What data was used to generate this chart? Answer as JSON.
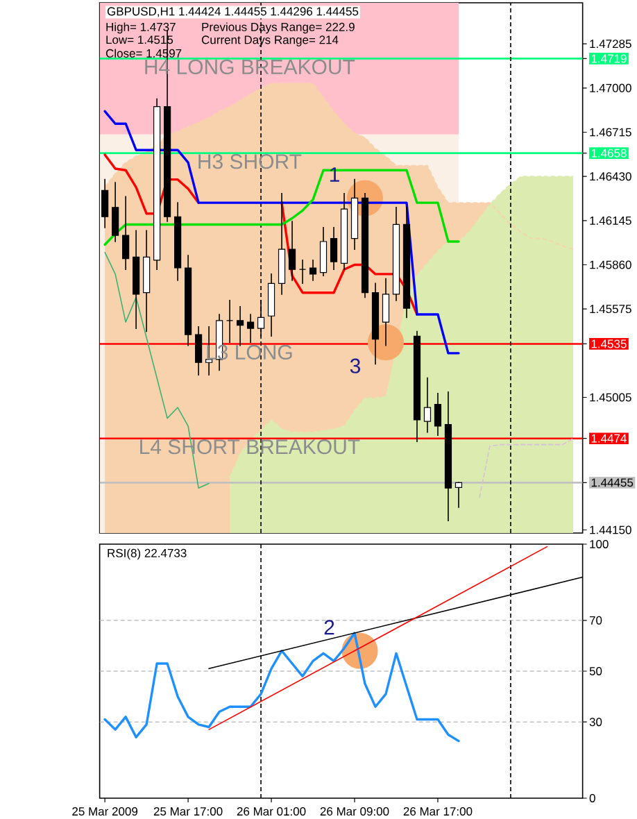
{
  "chart_data": [
    {
      "type": "candlestick",
      "title": "GBPUSD,H1 1.44424 1.44455 1.44296 1.44455",
      "annotations": [
        "High= 1.4737",
        "Previous Days Range= 222.9",
        "Low= 1.4515",
        "Current Days Range= 214",
        "Close= 1.4597",
        {
          "text": "1",
          "x": "2009-03-26T10:00",
          "y": 1.4629
        },
        {
          "text": "3",
          "x": "2009-03-26T12:00",
          "y": 1.4536
        }
      ],
      "x": [
        "2009-03-25T09:00",
        "2009-03-25T10:00",
        "2009-03-25T11:00",
        "2009-03-25T12:00",
        "2009-03-25T13:00",
        "2009-03-25T14:00",
        "2009-03-25T15:00",
        "2009-03-25T16:00",
        "2009-03-25T17:00",
        "2009-03-25T18:00",
        "2009-03-25T19:00",
        "2009-03-25T20:00",
        "2009-03-25T21:00",
        "2009-03-25T22:00",
        "2009-03-25T23:00",
        "2009-03-26T00:00",
        "2009-03-26T01:00",
        "2009-03-26T02:00",
        "2009-03-26T03:00",
        "2009-03-26T04:00",
        "2009-03-26T05:00",
        "2009-03-26T06:00",
        "2009-03-26T07:00",
        "2009-03-26T08:00",
        "2009-03-26T09:00",
        "2009-03-26T10:00",
        "2009-03-26T11:00",
        "2009-03-26T12:00",
        "2009-03-26T13:00",
        "2009-03-26T14:00",
        "2009-03-26T15:00",
        "2009-03-26T16:00",
        "2009-03-26T17:00",
        "2009-03-26T18:00",
        "2009-03-26T19:00"
      ],
      "ohlc": [
        [
          1.4634,
          1.4641,
          1.461,
          1.4617
        ],
        [
          1.4623,
          1.4639,
          1.4601,
          1.4605
        ],
        [
          1.4605,
          1.463,
          1.4583,
          1.459
        ],
        [
          1.4591,
          1.4608,
          1.4545,
          1.4567
        ],
        [
          1.4568,
          1.4608,
          1.4543,
          1.4591
        ],
        [
          1.4589,
          1.4693,
          1.4583,
          1.4688
        ],
        [
          1.4688,
          1.4737,
          1.4614,
          1.4617
        ],
        [
          1.4617,
          1.4626,
          1.4576,
          1.4584
        ],
        [
          1.4584,
          1.4592,
          1.4534,
          1.4541
        ],
        [
          1.4541,
          1.4546,
          1.4515,
          1.4523
        ],
        [
          1.4523,
          1.4546,
          1.4515,
          1.4525
        ],
        [
          1.4525,
          1.4554,
          1.4518,
          1.455
        ],
        [
          1.455,
          1.4563,
          1.4536,
          1.455
        ],
        [
          1.455,
          1.4559,
          1.4534,
          1.4547
        ],
        [
          1.4549,
          1.4554,
          1.4536,
          1.4545
        ],
        [
          1.4545,
          1.4563,
          1.454,
          1.4552
        ],
        [
          1.4553,
          1.458,
          1.454,
          1.4574
        ],
        [
          1.4574,
          1.4632,
          1.4567,
          1.4596
        ],
        [
          1.4596,
          1.4614,
          1.4576,
          1.4583
        ],
        [
          1.4583,
          1.4589,
          1.4574,
          1.4583
        ],
        [
          1.4584,
          1.4589,
          1.4576,
          1.458
        ],
        [
          1.4581,
          1.461,
          1.4579,
          1.4601
        ],
        [
          1.4603,
          1.461,
          1.4583,
          1.4588
        ],
        [
          1.4587,
          1.4632,
          1.4583,
          1.4622
        ],
        [
          1.4603,
          1.4641,
          1.4596,
          1.4629
        ],
        [
          1.4629,
          1.4632,
          1.4565,
          1.4568
        ],
        [
          1.4568,
          1.4574,
          1.4522,
          1.4538
        ],
        [
          1.4549,
          1.4577,
          1.4534,
          1.4567
        ],
        [
          1.4567,
          1.4623,
          1.4563,
          1.4612
        ],
        [
          1.4612,
          1.4623,
          1.4552,
          1.4558
        ],
        [
          1.454,
          1.4543,
          1.4472,
          1.4486
        ],
        [
          1.4485,
          1.4513,
          1.4478,
          1.4494
        ],
        [
          1.4496,
          1.4503,
          1.4476,
          1.4482
        ],
        [
          1.4483,
          1.4504,
          1.4421,
          1.4442
        ],
        [
          1.44424,
          1.44455,
          1.44296,
          1.44455
        ]
      ],
      "colors": [
        "#000000",
        "#000000",
        "#000000",
        "#000000",
        "#ffffff",
        "#ffffff",
        "#000000",
        "#000000",
        "#000000",
        "#000000",
        "#ffffff",
        "#ffffff",
        "#000000",
        "#000000",
        "#000000",
        "#ffffff",
        "#ffffff",
        "#ffffff",
        "#000000",
        "#000000",
        "#000000",
        "#ffffff",
        "#000000",
        "#ffffff",
        "#ffffff",
        "#000000",
        "#000000",
        "#ffffff",
        "#ffffff",
        "#000000",
        "#000000",
        "#ffffff",
        "#000000",
        "#000000",
        "#ffffff"
      ],
      "series": [
        {
          "type": "area",
          "color": "#f7d2ad",
          "line_style": "dashed",
          "x": [
            "2009-03-25T09:00",
            "2009-03-25T10:00",
            "2009-03-25T11:00",
            "2009-03-25T12:00",
            "2009-03-25T13:00",
            "2009-03-25T14:00",
            "2009-03-25T15:00",
            "2009-03-25T16:00",
            "2009-03-25T17:00",
            "2009-03-25T18:00",
            "2009-03-25T19:00",
            "2009-03-25T20:00",
            "2009-03-25T21:00",
            "2009-03-25T22:00",
            "2009-03-25T23:00",
            "2009-03-26T00:00",
            "2009-03-26T01:00",
            "2009-03-26T02:00",
            "2009-03-26T03:00",
            "2009-03-26T04:00",
            "2009-03-26T05:00",
            "2009-03-26T06:00",
            "2009-03-26T07:00",
            "2009-03-26T08:00",
            "2009-03-26T09:00",
            "2009-03-26T10:00",
            "2009-03-26T11:00",
            "2009-03-26T12:00",
            "2009-03-26T13:00",
            "2009-03-26T14:00",
            "2009-03-26T15:00",
            "2009-03-26T16:00",
            "2009-03-26T17:00",
            "2009-03-26T18:00",
            "2009-03-26T19:00",
            "2009-03-26T20:00",
            "2009-03-26T21:00",
            "2009-03-26T22:00",
            "2009-03-26T23:00",
            "2009-03-27T00:00",
            "2009-03-27T01:00",
            "2009-03-27T02:00",
            "2009-03-27T03:00",
            "2009-03-27T04:00",
            "2009-03-27T05:00",
            "2009-03-27T06:00"
          ],
          "values": [
            1.4636,
            1.4645,
            1.4652,
            1.4656,
            1.4659,
            1.4663,
            1.467,
            1.4672,
            1.4675,
            1.4678,
            1.4681,
            1.4685,
            1.4688,
            1.4692,
            1.4696,
            1.47,
            1.4703,
            1.4703,
            1.4703,
            1.4703,
            1.4703,
            1.4694,
            1.4685,
            1.4677,
            1.4671,
            1.4668,
            1.4661,
            1.4656,
            1.465,
            1.465,
            1.465,
            1.465,
            1.4636,
            1.4626,
            1.4626,
            1.4626,
            1.4626,
            1.4626,
            1.4619,
            1.4612,
            1.4607,
            1.4603,
            1.4603,
            1.4601,
            1.4598,
            1.4596
          ]
        },
        {
          "type": "area",
          "color": "#dcebb0",
          "line_style": "dashed",
          "x": [
            "2009-03-25T21:00",
            "2009-03-25T22:00",
            "2009-03-25T23:00",
            "2009-03-26T00:00",
            "2009-03-26T01:00",
            "2009-03-26T02:00",
            "2009-03-26T03:00",
            "2009-03-26T04:00",
            "2009-03-26T05:00",
            "2009-03-26T06:00",
            "2009-03-26T07:00",
            "2009-03-26T08:00",
            "2009-03-26T09:00",
            "2009-03-26T10:00",
            "2009-03-26T11:00",
            "2009-03-26T12:00",
            "2009-03-26T13:00",
            "2009-03-26T14:00",
            "2009-03-26T15:00",
            "2009-03-26T16:00",
            "2009-03-26T17:00",
            "2009-03-26T18:00",
            "2009-03-26T19:00",
            "2009-03-26T20:00",
            "2009-03-26T21:00",
            "2009-03-26T22:00",
            "2009-03-26T23:00",
            "2009-03-27T00:00",
            "2009-03-27T01:00",
            "2009-03-27T02:00",
            "2009-03-27T03:00",
            "2009-03-27T04:00",
            "2009-03-27T05:00",
            "2009-03-27T06:00"
          ],
          "values": [
            1.4449,
            1.4464,
            1.4473,
            1.4479,
            1.4486,
            1.448,
            1.4478,
            1.4478,
            1.4478,
            1.4479,
            1.448,
            1.4482,
            1.4492,
            1.45,
            1.45,
            1.4501,
            null,
            1.4565,
            1.4579,
            1.4587,
            1.4595,
            1.4601,
            1.4601,
            1.4607,
            1.4616,
            1.4625,
            1.4632,
            1.4638,
            1.4643,
            1.4643,
            1.4643,
            1.4643,
            1.4643,
            1.4643
          ]
        },
        {
          "type": "line",
          "color": "#d8bfd8",
          "line_style": "dashed",
          "x": [
            "2009-03-26T21:00",
            "2009-03-26T22:00",
            "2009-03-26T23:00",
            "2009-03-27T00:00",
            "2009-03-27T01:00",
            "2009-03-27T02:00",
            "2009-03-27T03:00",
            "2009-03-27T04:00",
            "2009-03-27T05:00",
            "2009-03-27T06:00"
          ],
          "values": [
            1.4436,
            1.4469,
            1.447,
            1.447,
            1.447,
            1.447,
            1.447,
            1.447,
            1.447,
            1.4474
          ]
        },
        {
          "type": "line",
          "color": "#3cb371",
          "x": [
            "2009-03-25T09:00",
            "2009-03-25T10:00",
            "2009-03-25T11:00",
            "2009-03-25T12:00",
            "2009-03-25T15:00",
            "2009-03-25T16:00",
            "2009-03-25T17:00",
            "2009-03-25T18:00",
            "2009-03-25T19:00"
          ],
          "values": [
            1.4594,
            1.458,
            1.4549,
            1.4565,
            1.4487,
            1.4494,
            1.4482,
            1.4442,
            1.4445
          ]
        },
        {
          "type": "line",
          "color": "#ff0000",
          "values": [
            1.4657,
            1.4648,
            1.4647,
            1.4636,
            1.4619,
            1.4619,
            1.4641,
            1.4641,
            1.4635,
            1.4626,
            null,
            null,
            null,
            null,
            null,
            null,
            null,
            1.4626,
            1.4579,
            1.4568,
            1.4568,
            1.4568,
            1.4568,
            1.4583,
            1.4586,
            1.4586,
            1.458,
            1.458,
            1.458,
            1.457,
            1.4554,
            null,
            null,
            null,
            null
          ]
        },
        {
          "type": "line",
          "color": "#0000ff",
          "values": [
            1.4685,
            1.4677,
            1.4677,
            1.466,
            1.466,
            1.466,
            1.466,
            1.466,
            1.4652,
            1.4626,
            1.4626,
            1.4626,
            1.4626,
            1.4626,
            1.4626,
            1.4626,
            1.4626,
            1.4626,
            1.4626,
            1.4626,
            1.4626,
            1.4626,
            1.4626,
            1.4626,
            1.4626,
            1.4626,
            1.4626,
            1.4626,
            1.4626,
            1.4626,
            1.4554,
            1.4554,
            1.4554,
            1.4529,
            1.4529
          ]
        },
        {
          "type": "line",
          "color": "#00e000",
          "values": [
            1.4599,
            1.4606,
            1.4612,
            1.4612,
            1.4612,
            1.4612,
            1.4612,
            1.4612,
            1.4612,
            1.4612,
            1.4612,
            1.4612,
            1.4612,
            1.4612,
            1.4612,
            1.4612,
            1.4612,
            1.4612,
            1.4616,
            1.4621,
            1.4628,
            1.4647,
            1.4647,
            1.4647,
            1.4647,
            1.4647,
            1.4647,
            1.4647,
            1.4647,
            1.4647,
            1.4626,
            1.4626,
            1.4626,
            1.4601,
            1.4601
          ]
        }
      ],
      "xlim": [
        "2009-03-25T08:30",
        "2009-03-27T06:55"
      ],
      "ylim": [
        1.4413,
        1.4755
      ],
      "yticks": [
        {
          "value": 1.47285,
          "label": "1.47285"
        },
        {
          "value": 1.4719,
          "label": "1.4719"
        },
        {
          "value": 1.47,
          "label": "1.47000"
        },
        {
          "value": 1.46715,
          "label": "1.46715"
        },
        {
          "value": 1.4658,
          "label": "1.4658"
        },
        {
          "value": 1.4643,
          "label": "1.46430"
        },
        {
          "value": 1.46145,
          "label": "1.46145"
        },
        {
          "value": 1.4586,
          "label": "1.45860"
        },
        {
          "value": 1.45575,
          "label": "1.45575"
        },
        {
          "value": 1.4535,
          "label": "1.4535"
        },
        {
          "value": 1.45005,
          "label": "1.45005"
        },
        {
          "value": 1.4474,
          "label": "1.4474"
        },
        {
          "value": 1.44455,
          "label": "1.44455"
        },
        {
          "value": 1.4415,
          "label": "1.44150"
        }
      ],
      "tick_labels": "y",
      "ref_lines": [
        {
          "axis": "y",
          "value": 1.4719,
          "label": "H4 LONG BREAKOUT",
          "color": "#00ff7f"
        },
        {
          "axis": "y",
          "value": 1.4658,
          "label": "H3 SHORT",
          "color": "#00ff7f"
        },
        {
          "axis": "y",
          "value": 1.4535,
          "label": "L3 LONG",
          "color": "#ff0000"
        },
        {
          "axis": "y",
          "value": 1.4474,
          "label": "L4 SHORT BREAKOUT",
          "color": "#ff0000"
        },
        {
          "axis": "y",
          "value": 1.44455,
          "color": "#c0c0c0"
        },
        {
          "axis": "x",
          "value": "2009-03-26T00:00",
          "color": "#000000",
          "line_style": "dashed"
        },
        {
          "axis": "x",
          "value": "2009-03-27T00:00",
          "color": "#000000",
          "line_style": "dashed"
        }
      ],
      "bands": [
        {
          "axis": "y",
          "from": 1.467,
          "to": 1.4755,
          "color": "#ffc0cb"
        },
        {
          "axis": "y",
          "from": 1.4413,
          "to": 1.467,
          "color": "#faf0e6"
        }
      ]
    },
    {
      "type": "line",
      "title": "RSI(8) 22.4733",
      "x": [
        "2009-03-25T09:00",
        "2009-03-25T10:00",
        "2009-03-25T11:00",
        "2009-03-25T12:00",
        "2009-03-25T13:00",
        "2009-03-25T14:00",
        "2009-03-25T15:00",
        "2009-03-25T16:00",
        "2009-03-25T17:00",
        "2009-03-25T18:00",
        "2009-03-25T19:00",
        "2009-03-25T20:00",
        "2009-03-25T21:00",
        "2009-03-25T22:00",
        "2009-03-25T23:00",
        "2009-03-26T00:00",
        "2009-03-26T01:00",
        "2009-03-26T02:00",
        "2009-03-26T03:00",
        "2009-03-26T04:00",
        "2009-03-26T05:00",
        "2009-03-26T06:00",
        "2009-03-26T07:00",
        "2009-03-26T08:00",
        "2009-03-26T09:00",
        "2009-03-26T10:00",
        "2009-03-26T11:00",
        "2009-03-26T12:00",
        "2009-03-26T13:00",
        "2009-03-26T14:00",
        "2009-03-26T15:00",
        "2009-03-26T16:00",
        "2009-03-26T17:00",
        "2009-03-26T18:00",
        "2009-03-26T19:00"
      ],
      "series": [
        {
          "color": "#1e90ff",
          "values": [
            31,
            27,
            32,
            24,
            29,
            53,
            53,
            40,
            32,
            29,
            28,
            34,
            36,
            36,
            36,
            41,
            51,
            58,
            53,
            48,
            54,
            57,
            54,
            59,
            65,
            45,
            36,
            41,
            57,
            44,
            31,
            31,
            31,
            25,
            22.5
          ]
        },
        {
          "color": "#000000",
          "x": [
            "2009-03-25T19:00",
            "2009-03-27T06:55"
          ],
          "values": [
            51,
            87
          ]
        },
        {
          "color": "#ff0000",
          "x": [
            "2009-03-25T19:00",
            "2009-03-27T03:30"
          ],
          "values": [
            27,
            99
          ]
        }
      ],
      "annotations": [
        {
          "text": "2",
          "x": "2009-03-26T09:30",
          "y": 58
        }
      ],
      "xlim": [
        "2009-03-25T08:30",
        "2009-03-27T06:55"
      ],
      "ylim": [
        0,
        100
      ],
      "xticks": [
        {
          "value": "2009-03-25T09:00",
          "label": "25 Mar 2009"
        },
        {
          "value": "2009-03-25T17:00",
          "label": "25 Mar 17:00"
        },
        {
          "value": "2009-03-26T01:00",
          "label": "26 Mar 01:00"
        },
        {
          "value": "2009-03-26T09:00",
          "label": "26 Mar 09:00"
        },
        {
          "value": "2009-03-26T17:00",
          "label": "26 Mar 17:00"
        }
      ],
      "yticks": [
        0,
        30,
        50,
        70,
        100
      ],
      "ref_lines": [
        {
          "axis": "y",
          "value": 30,
          "color": "#c0c0c0",
          "line_style": "dashed"
        },
        {
          "axis": "y",
          "value": 50,
          "color": "#c0c0c0",
          "line_style": "dashed"
        },
        {
          "axis": "y",
          "value": 70,
          "color": "#c0c0c0",
          "line_style": "dashed"
        },
        {
          "axis": "x",
          "value": "2009-03-26T00:00",
          "color": "#000000",
          "line_style": "dashed"
        },
        {
          "axis": "x",
          "value": "2009-03-27T00:00",
          "color": "#000000",
          "line_style": "dashed"
        }
      ]
    }
  ]
}
